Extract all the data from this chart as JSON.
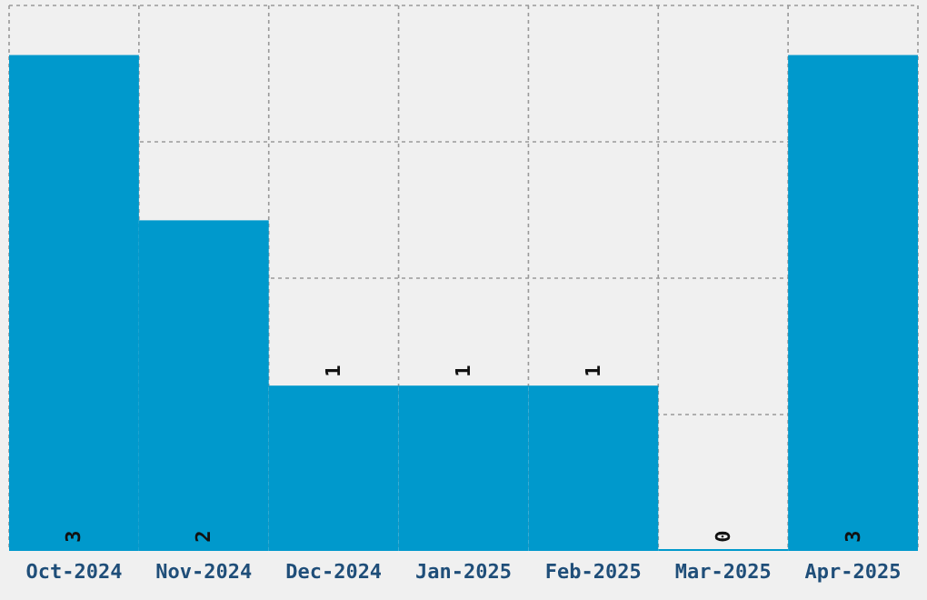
{
  "chart_data": {
    "type": "bar",
    "categories": [
      "Oct-2024",
      "Nov-2024",
      "Dec-2024",
      "Jan-2025",
      "Feb-2025",
      "Mar-2025",
      "Apr-2025"
    ],
    "values": [
      3,
      2,
      1,
      1,
      1,
      0,
      3
    ],
    "color": "#0099cc",
    "ylim": [
      0,
      3.3
    ],
    "yticks": [
      {
        "value": 0.825,
        "label": null
      },
      {
        "value": 1.65,
        "label": null
      },
      {
        "value": 2.475,
        "label": null
      },
      {
        "value": 3.3,
        "label": null
      }
    ],
    "grid": true,
    "data_labels": true,
    "tick_labels": "x"
  }
}
